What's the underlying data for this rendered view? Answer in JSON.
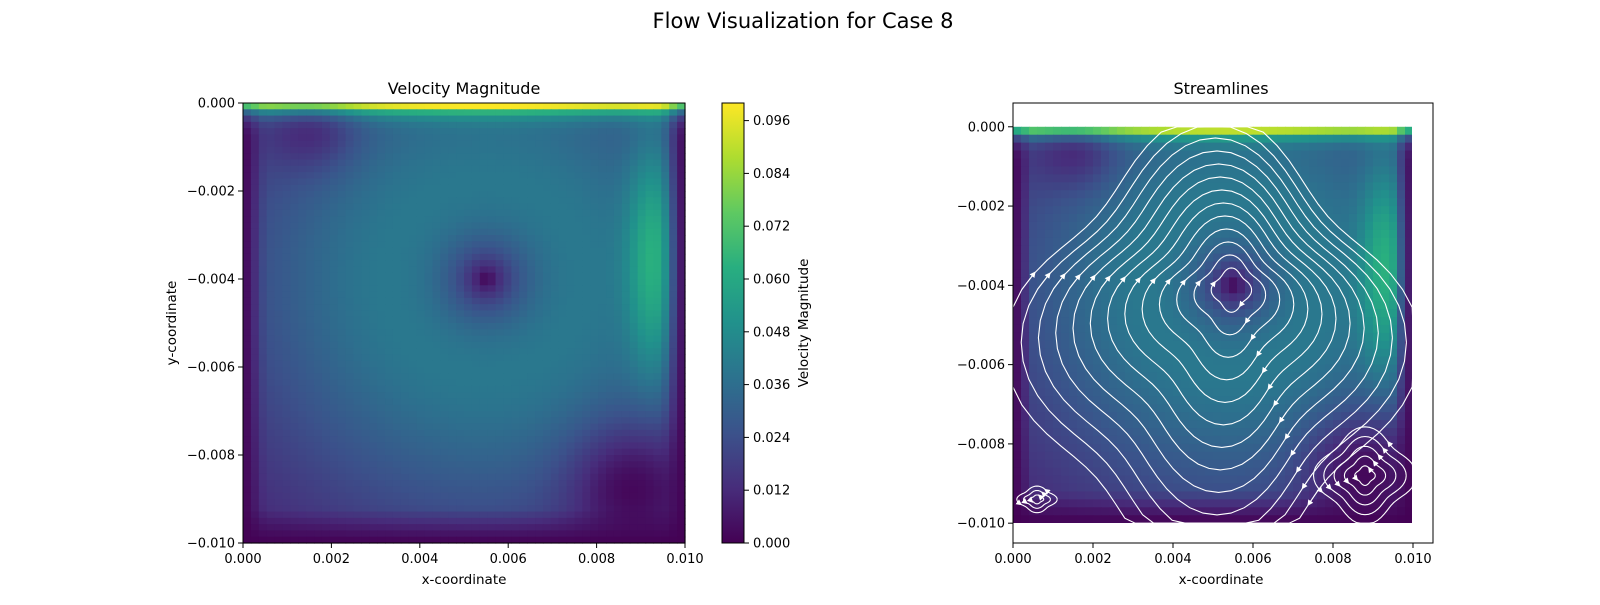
{
  "chart_data": [
    {
      "type": "heatmap",
      "title": "Velocity Magnitude",
      "xlabel": "x-coordinate",
      "ylabel": "y-coordinate",
      "xlim": [
        0.0,
        0.01
      ],
      "ylim": [
        -0.01,
        0.0
      ],
      "xticks": [
        "0.000",
        "0.002",
        "0.004",
        "0.006",
        "0.008",
        "0.010"
      ],
      "yticks": [
        "0.000",
        "−0.002",
        "−0.004",
        "−0.006",
        "−0.008",
        "−0.010"
      ],
      "colormap": "viridis",
      "colorbar": {
        "label": "Velocity Magnitude",
        "range": [
          0.0,
          0.1
        ],
        "ticks": [
          "0.000",
          "0.012",
          "0.024",
          "0.036",
          "0.048",
          "0.060",
          "0.072",
          "0.084",
          "0.096"
        ]
      },
      "features": [
        {
          "name": "lid",
          "y": 0.0,
          "value": 0.1
        },
        {
          "name": "primary vortex core",
          "x": 0.0055,
          "y": -0.004,
          "value": 0.005
        },
        {
          "name": "right wall jet",
          "x": 0.0093,
          "y": -0.0025,
          "value": 0.062
        },
        {
          "name": "lower-right corner",
          "x": 0.009,
          "y": -0.009,
          "value": 0.002
        }
      ]
    },
    {
      "type": "scatter",
      "title": "Streamlines",
      "xlabel": "x-coordinate",
      "ylabel": "",
      "xlim": [
        0.0,
        0.0105
      ],
      "ylim": [
        -0.0105,
        0.0006
      ],
      "xticks": [
        "0.000",
        "0.002",
        "0.004",
        "0.006",
        "0.008",
        "0.010"
      ],
      "yticks": [
        "0.000",
        "−0.002",
        "−0.004",
        "−0.006",
        "−0.008",
        "−0.010"
      ],
      "vortices": [
        {
          "name": "primary",
          "x": 0.0055,
          "y": -0.004,
          "rotation": "clockwise"
        },
        {
          "name": "bottom-right secondary",
          "x": 0.0088,
          "y": -0.0088,
          "rotation": "counterclockwise"
        },
        {
          "name": "bottom-left secondary",
          "x": 0.0006,
          "y": -0.0094,
          "rotation": "counterclockwise"
        }
      ]
    }
  ],
  "figure": {
    "suptitle": "Flow Visualization for Case 8"
  }
}
